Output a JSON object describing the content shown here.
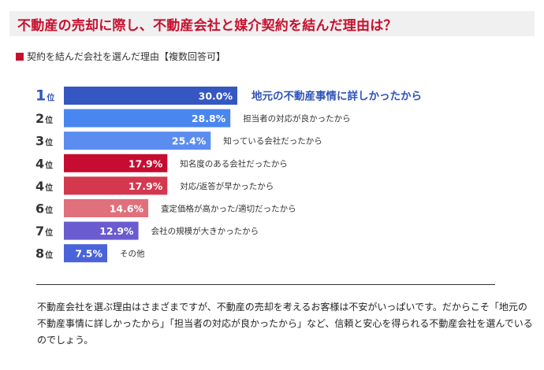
{
  "title": "不動産の売却に際し、不動産会社と媒介契約を結んだ理由は？",
  "subtitle": "契約を結んだ会社を選んだ理由【複数回答可】",
  "colors": {
    "accent_red": "#c8102e",
    "title_bg": "#f0f0f0",
    "highlight_label": "#2f55b8"
  },
  "chart_data": {
    "type": "bar",
    "orientation": "horizontal",
    "title": "契約を結んだ会社を選んだ理由【複数回答可】",
    "xlim": [
      0,
      30
    ],
    "rank_suffix": "位",
    "bars": [
      {
        "rank": "1",
        "value": 30.0,
        "value_label": "30.0%",
        "label": "地元の不動産事情に詳しかったから",
        "color": "#3557c2",
        "highlight": true
      },
      {
        "rank": "2",
        "value": 28.8,
        "value_label": "28.8%",
        "label": "担当者の対応が良かったから",
        "color": "#4a86f0",
        "highlight": false
      },
      {
        "rank": "3",
        "value": 25.4,
        "value_label": "25.4%",
        "label": "知っている会社だったから",
        "color": "#5b8cf0",
        "highlight": false
      },
      {
        "rank": "4",
        "value": 17.9,
        "value_label": "17.9%",
        "label": "知名度のある会社だったから",
        "color": "#c60c30",
        "highlight": false
      },
      {
        "rank": "4",
        "value": 17.9,
        "value_label": "17.9%",
        "label": "対応/返答が早かったから",
        "color": "#d4384f",
        "highlight": false
      },
      {
        "rank": "6",
        "value": 14.6,
        "value_label": "14.6%",
        "label": "査定価格が高かった/適切だったから",
        "color": "#e0707c",
        "highlight": false
      },
      {
        "rank": "7",
        "value": 12.9,
        "value_label": "12.9%",
        "label": "会社の規模が大きかったから",
        "color": "#6a5bd0",
        "highlight": false
      },
      {
        "rank": "8",
        "value": 7.5,
        "value_label": "7.5%",
        "label": "その他",
        "color": "#4a63d8",
        "highlight": false
      }
    ]
  },
  "body_text": "不動産会社を選ぶ理由はさまざまですが、不動産の売却を考えるお客様は不安がいっぱいです。だからこそ「地元の不動産事情に詳しかったから」「担当者の対応が良かったから」など、信頼と安心を得られる不動産会社を選んでいるのでしょう。"
}
